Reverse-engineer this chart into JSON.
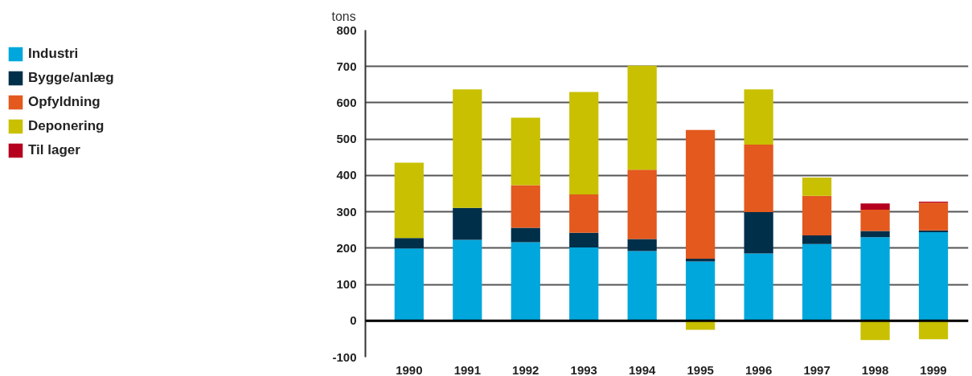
{
  "chart_data": {
    "type": "bar",
    "stacked": true,
    "ylabel": "tons",
    "categories": [
      "1990",
      "1991",
      "1992",
      "1993",
      "1994",
      "1995",
      "1996",
      "1997",
      "1998",
      "1999"
    ],
    "series": [
      {
        "name": "Industri",
        "color": "#00a7dc",
        "values": [
          199,
          223,
          216,
          202,
          192,
          163,
          185,
          211,
          230,
          244
        ]
      },
      {
        "name": "Bygge/anlæg",
        "color": "#002f4a",
        "values": [
          29,
          88,
          40,
          40,
          33,
          8,
          114,
          24,
          17,
          5
        ]
      },
      {
        "name": "Opfyldning",
        "color": "#e3591e",
        "values": [
          null,
          null,
          117,
          106,
          191,
          354,
          186,
          109,
          59,
          76
        ]
      },
      {
        "name": "Deponering",
        "color": "#c8c000",
        "values": [
          207,
          326,
          186,
          282,
          286,
          -25,
          152,
          50,
          -53,
          -51
        ]
      },
      {
        "name": "Til lager",
        "color": "#b5001f",
        "values": [
          null,
          null,
          null,
          null,
          null,
          null,
          null,
          null,
          17,
          3
        ]
      }
    ],
    "ylim": [
      -100,
      800
    ],
    "yticks": [
      -100,
      0,
      100,
      200,
      300,
      400,
      500,
      600,
      700,
      800
    ],
    "grid": "y",
    "legend": "left",
    "ref_lines": [
      {
        "axis": "y",
        "value": 0,
        "color": "#000000"
      }
    ]
  }
}
